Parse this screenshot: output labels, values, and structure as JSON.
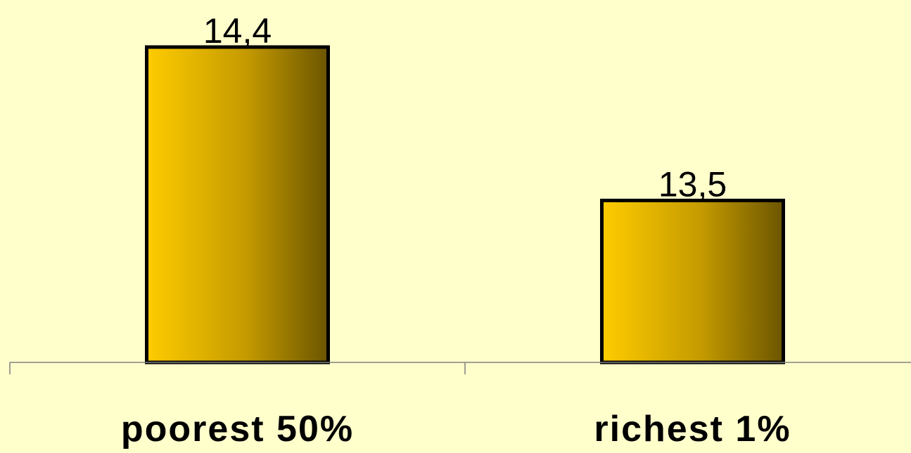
{
  "chart_data": {
    "type": "bar",
    "categories": [
      "poorest 50%",
      "richest 1%"
    ],
    "values": [
      14.4,
      13.5
    ],
    "value_labels": [
      "14,4",
      "13,5"
    ],
    "title": "",
    "xlabel": "",
    "ylabel": "",
    "ylim": [
      12.55,
      14.4
    ],
    "grid": false,
    "legend": "none",
    "colors": {
      "background": "#ffffcc",
      "bar_gradient_start": "#ffcc00",
      "bar_gradient_mid": "#c49a00",
      "bar_gradient_end": "#6b5500",
      "bar_outline": "#000000",
      "axis": "#808080"
    }
  }
}
